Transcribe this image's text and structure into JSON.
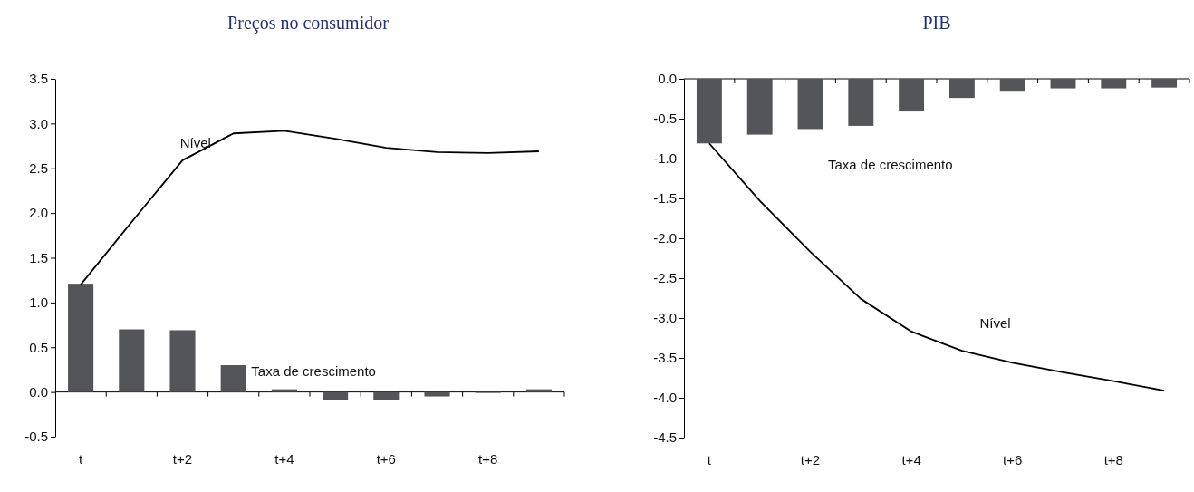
{
  "chart_data": [
    {
      "type": "bar",
      "title": "Preços no consumidor",
      "categories": [
        "t",
        null,
        "t+2",
        null,
        "t+4",
        null,
        "t+6",
        null,
        "t+8",
        null
      ],
      "ylim": [
        -0.5,
        3.5
      ],
      "yticks": [
        {
          "value": -0.5,
          "label": "-0.5"
        },
        {
          "value": 0,
          "label": "0.0"
        },
        {
          "value": 0.5,
          "label": "0.5"
        },
        {
          "value": 1,
          "label": "1.0"
        },
        {
          "value": 1.5,
          "label": "1.5"
        },
        {
          "value": 2,
          "label": "2.0"
        },
        {
          "value": 2.5,
          "label": "2.5"
        },
        {
          "value": 3,
          "label": "3.0"
        },
        {
          "value": 3.5,
          "label": "3.5"
        }
      ],
      "series": [
        {
          "name": "Taxa de crescimento",
          "color": "#545559",
          "values": [
            1.21,
            0.7,
            0.69,
            0.3,
            0.03,
            -0.09,
            -0.09,
            -0.05,
            -0.01,
            0.03
          ]
        },
        {
          "name": "Nível",
          "type": "line",
          "color": "#000000",
          "values": [
            1.2,
            1.9,
            2.59,
            2.89,
            2.92,
            2.83,
            2.73,
            2.68,
            2.67,
            2.69
          ]
        }
      ]
    },
    {
      "type": "bar",
      "title": "PIB",
      "categories": [
        "t",
        null,
        "t+2",
        null,
        "t+4",
        null,
        "t+6",
        null,
        "t+8",
        null
      ],
      "ylim": [
        -4.5,
        0.0
      ],
      "yticks": [
        {
          "value": -4.5,
          "label": "-4.5"
        },
        {
          "value": -4,
          "label": "-4.0"
        },
        {
          "value": -3.5,
          "label": "-3.5"
        },
        {
          "value": -3,
          "label": "-3.0"
        },
        {
          "value": -2.5,
          "label": "-2.5"
        },
        {
          "value": -2,
          "label": "-2.0"
        },
        {
          "value": -1.5,
          "label": "-1.5"
        },
        {
          "value": -1,
          "label": "-1.0"
        },
        {
          "value": -0.5,
          "label": "-0.5"
        },
        {
          "value": 0,
          "label": "0.0"
        }
      ],
      "series": [
        {
          "name": "Taxa de crescimento",
          "color": "#545559",
          "values": [
            -0.81,
            -0.7,
            -0.63,
            -0.59,
            -0.41,
            -0.24,
            -0.15,
            -0.12,
            -0.12,
            -0.11
          ]
        },
        {
          "name": "Nível",
          "type": "line",
          "color": "#000000",
          "values": [
            -0.81,
            -1.53,
            -2.17,
            -2.76,
            -3.17,
            -3.41,
            -3.56,
            -3.68,
            -3.79,
            -3.91
          ]
        }
      ]
    }
  ]
}
